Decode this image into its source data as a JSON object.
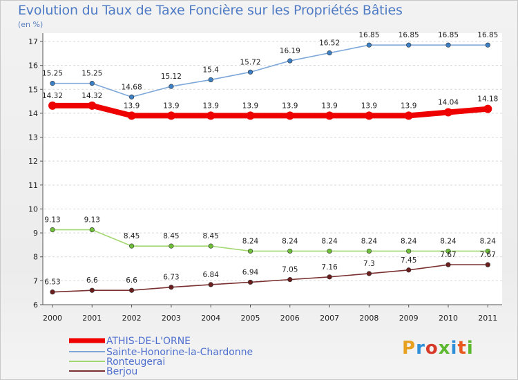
{
  "header": {
    "title": "Evolution du Taux de Taxe Foncière sur les Propriétés Bâties",
    "unit": "(en %)"
  },
  "brand": {
    "logo_text": "Proxiti",
    "logo_colors": [
      "#e8a020",
      "#2e8fd8",
      "#d83a2a",
      "#5cb82e",
      "#2e8fd8",
      "#e85a20",
      "#5cb82e"
    ]
  },
  "chart_data": {
    "type": "line",
    "title": "Evolution du Taux de Taxe Foncière sur les Propriétés Bâties",
    "ylabel": "(en %)",
    "xlabel": "",
    "ylim": [
      6,
      17
    ],
    "yticks": [
      6,
      7,
      8,
      9,
      10,
      11,
      12,
      13,
      14,
      15,
      16,
      17
    ],
    "x": [
      2000,
      2001,
      2002,
      2003,
      2004,
      2005,
      2006,
      2007,
      2008,
      2009,
      2010,
      2011
    ],
    "legend_position": "bottom-left",
    "series": [
      {
        "name": "ATHIS-DE-L'ORNE",
        "color": "#ee0000",
        "emphasis": true,
        "values": [
          14.32,
          14.32,
          13.9,
          13.9,
          13.9,
          13.9,
          13.9,
          13.9,
          13.9,
          13.9,
          14.04,
          14.18
        ],
        "labels": [
          "14.32",
          "14.32",
          "13.9",
          "13.9",
          "13.9",
          "13.9",
          "13.9",
          "13.9",
          "13.9",
          "13.9",
          "14.04",
          "14.18"
        ]
      },
      {
        "name": "Sainte-Honorine-la-Chardonne",
        "color": "#7da7d9",
        "marker": "#3b7fc4",
        "values": [
          15.25,
          15.25,
          14.68,
          15.12,
          15.4,
          15.72,
          16.19,
          16.52,
          16.85,
          16.85,
          16.85,
          16.85
        ],
        "labels": [
          "15.25",
          "15.25",
          "14.68",
          "15.12",
          "15.4",
          "15.72",
          "16.19",
          "16.52",
          "16.85",
          "16.85",
          "16.85",
          "16.85"
        ]
      },
      {
        "name": "Ronteugerai",
        "color": "#a3d870",
        "marker": "#6fbf3a",
        "values": [
          9.13,
          9.13,
          8.45,
          8.45,
          8.45,
          8.24,
          8.24,
          8.24,
          8.24,
          8.24,
          8.24,
          8.24
        ],
        "labels": [
          "9.13",
          "9.13",
          "8.45",
          "8.45",
          "8.45",
          "8.24",
          "8.24",
          "8.24",
          "8.24",
          "8.24",
          "8.24",
          "8.24"
        ]
      },
      {
        "name": "Berjou",
        "color": "#7a3030",
        "marker": "#6b1e1e",
        "values": [
          6.53,
          6.6,
          6.6,
          6.73,
          6.84,
          6.94,
          7.05,
          7.16,
          7.3,
          7.45,
          7.67,
          7.67
        ],
        "labels": [
          "6.53",
          "6.6",
          "6.6",
          "6.73",
          "6.84",
          "6.94",
          "7.05",
          "7.16",
          "7.3",
          "7.45",
          "7.67",
          "7.67"
        ]
      }
    ]
  }
}
